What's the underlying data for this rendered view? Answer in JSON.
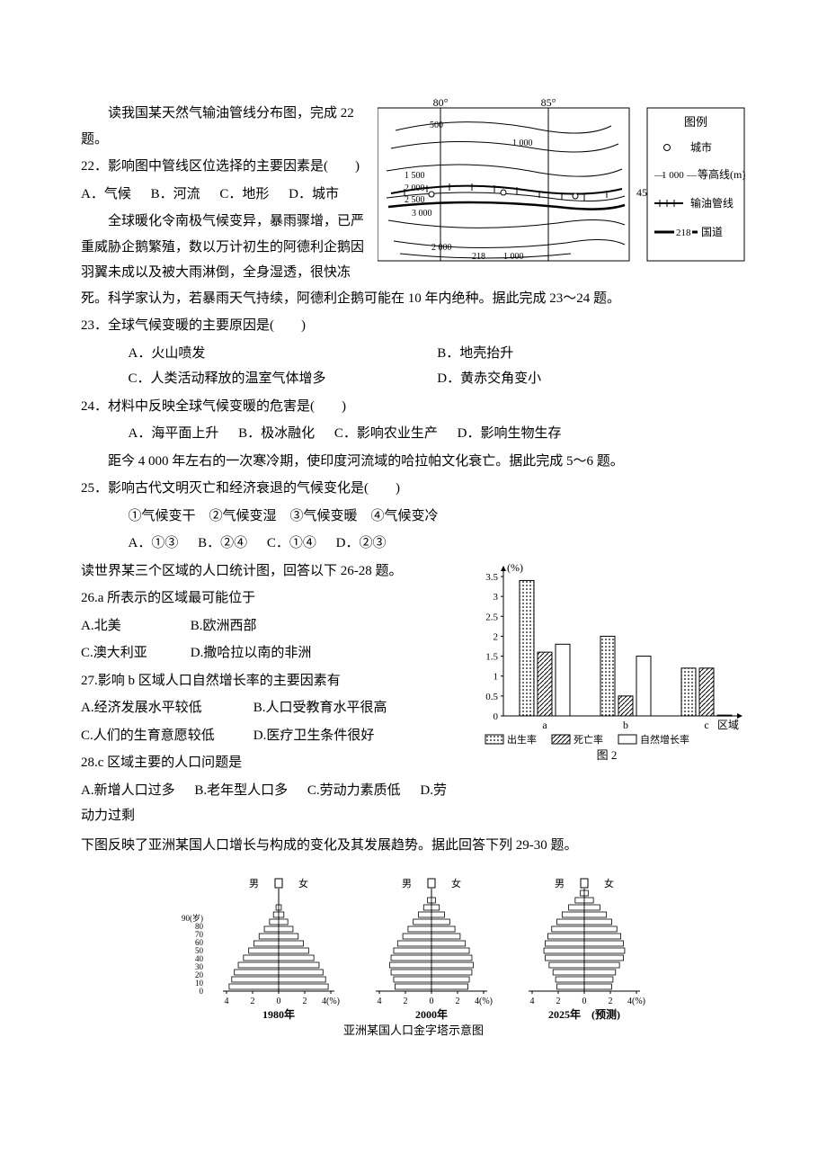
{
  "intro22": "读我国某天然气输油管线分布图，完成 22 题。",
  "q22": {
    "stem": "22．影响图中管线区位选择的主要因素是(　　)",
    "optA": "A．气候",
    "optB": "B．河流",
    "optC": "C．地形",
    "optD": "D．城市"
  },
  "map": {
    "lon80": "80°",
    "lon85": "85°",
    "lat45": "45°",
    "legend_title": "图例",
    "legend_city": "城市",
    "legend_contour": "等高线(m)",
    "legend_pipe": "输油管线",
    "legend_road": "国道",
    "contour_1000_label": "1 000",
    "road_218": "218",
    "c500": "500",
    "c1000": "1 000",
    "c1500": "1 500",
    "c2000": "2 000",
    "c2500": "2 500",
    "c3000": "3 000"
  },
  "intro23": "全球暖化令南极气候变异，暴雨骤增，已严重威胁企鹅繁殖，数以万计初生的阿德利企鹅因羽翼未成以及被大雨淋倒，全身湿透，很快冻死。科学家认为，若暴雨天气持续，阿德利企鹅可能在 10 年内绝种。据此完成 23～24 题。",
  "q23": {
    "stem": "23．全球气候变暖的主要原因是(　　)",
    "optA": "A．火山喷发",
    "optB": "B．地壳抬升",
    "optC": "C．人类活动释放的温室气体增多",
    "optD": "D．黄赤交角变小"
  },
  "q24": {
    "stem": "24．材料中反映全球气候变暖的危害是(　　)",
    "optA": "A．海平面上升",
    "optB": "B．极冰融化",
    "optC": "C．影响农业生产",
    "optD": "D．影响生物生存"
  },
  "intro25": "距今 4 000 年左右的一次寒冷期，使印度河流域的哈拉帕文化衰亡。据此完成 5～6 题。",
  "q25": {
    "stem": "25．影响古代文明灭亡和经济衰退的气候变化是(　　)",
    "sub": "①气候变干　②气候变湿　③气候变暖　④气候变冷",
    "optA": "A．①③",
    "optB": "B．②④",
    "optC": "C．①④",
    "optD": "D．②③"
  },
  "intro26": "读世界某三个区域的人口统计图，回答以下 26-28 题。",
  "q26": {
    "stem": "26.a 所表示的区域最可能位于",
    "optA": "A.北美",
    "optB": "B.欧洲西部",
    "optC": "C.澳大利亚",
    "optD": "D.撒哈拉以南的非洲"
  },
  "q27": {
    "stem": "27.影响 b 区域人口自然增长率的主要因素有",
    "optA": "A.经济发展水平较低",
    "optB": "B.人口受教育水平很高",
    "optC": "C.人们的生育意愿较低",
    "optD": "D.医疗卫生条件很好"
  },
  "q28": {
    "stem": "28.c 区域主要的人口问题是",
    "optA": "A.新增人口过多",
    "optB": "B.老年型人口多",
    "optC": "C.劳动力素质低",
    "optD": "D.劳动力过剩"
  },
  "barChart": {
    "ylabel": "(%)",
    "yticks": [
      "0",
      "0.5",
      "1",
      "1.5",
      "2",
      "2.5",
      "3",
      "3.5"
    ],
    "ymax": 3.5,
    "categories": [
      "a",
      "b",
      "c"
    ],
    "xlabel": "区域",
    "series": [
      {
        "name": "出生率",
        "pattern": "dots",
        "values": [
          3.4,
          2.0,
          1.2
        ]
      },
      {
        "name": "死亡率",
        "pattern": "hatch",
        "values": [
          1.6,
          0.5,
          1.2
        ]
      },
      {
        "name": "自然增长率",
        "pattern": "none",
        "values": [
          1.8,
          1.5,
          0.02
        ]
      }
    ],
    "legend": {
      "birth": "出生率",
      "death": "死亡率",
      "nat": "自然增长率"
    },
    "caption": "图 2",
    "barWidth": 16,
    "groupGap": 34,
    "barGap": 4,
    "axisColor": "#000",
    "bg": "#ffffff"
  },
  "intro29": "下图反映了亚洲某国人口增长与构成的变化及其发展趋势。据此回答下列 29-30 题。",
  "pyramids": {
    "yTicks": [
      "0",
      "10",
      "20",
      "30",
      "40",
      "50",
      "60",
      "70",
      "80",
      "90(岁)"
    ],
    "xTicks": [
      "4",
      "2",
      "0",
      "2",
      "4(%)"
    ],
    "maleLabel": "男",
    "femaleLabel": "女",
    "years": [
      "1980年",
      "2000年",
      "2025年　(预测)"
    ],
    "caption": "亚洲某国人口金字塔示意图",
    "data": [
      {
        "left": [
          3.8,
          3.6,
          3.4,
          3.1,
          2.7,
          2.3,
          1.9,
          1.5,
          1.1,
          0.7,
          0.4,
          0.2
        ],
        "right": [
          3.8,
          3.6,
          3.4,
          3.1,
          2.7,
          2.3,
          1.9,
          1.5,
          1.1,
          0.7,
          0.4,
          0.2
        ]
      },
      {
        "left": [
          2.8,
          2.9,
          3.1,
          3.2,
          3.1,
          2.9,
          2.6,
          2.2,
          1.8,
          1.4,
          1.0,
          0.6,
          0.3
        ],
        "right": [
          2.8,
          2.9,
          3.1,
          3.2,
          3.1,
          2.9,
          2.6,
          2.2,
          1.8,
          1.4,
          1.0,
          0.6,
          0.3
        ]
      },
      {
        "left": [
          2.1,
          2.2,
          2.4,
          2.7,
          3.0,
          3.1,
          3.0,
          2.8,
          2.5,
          2.1,
          1.7,
          1.2,
          0.7,
          0.3
        ],
        "right": [
          2.1,
          2.2,
          2.4,
          2.7,
          3.0,
          3.1,
          3.0,
          2.8,
          2.5,
          2.1,
          1.7,
          1.2,
          0.7,
          0.3
        ]
      }
    ],
    "barH": 6,
    "maxVal": 4,
    "halfW": 58,
    "fill": "#ffffff",
    "stroke": "#000"
  }
}
